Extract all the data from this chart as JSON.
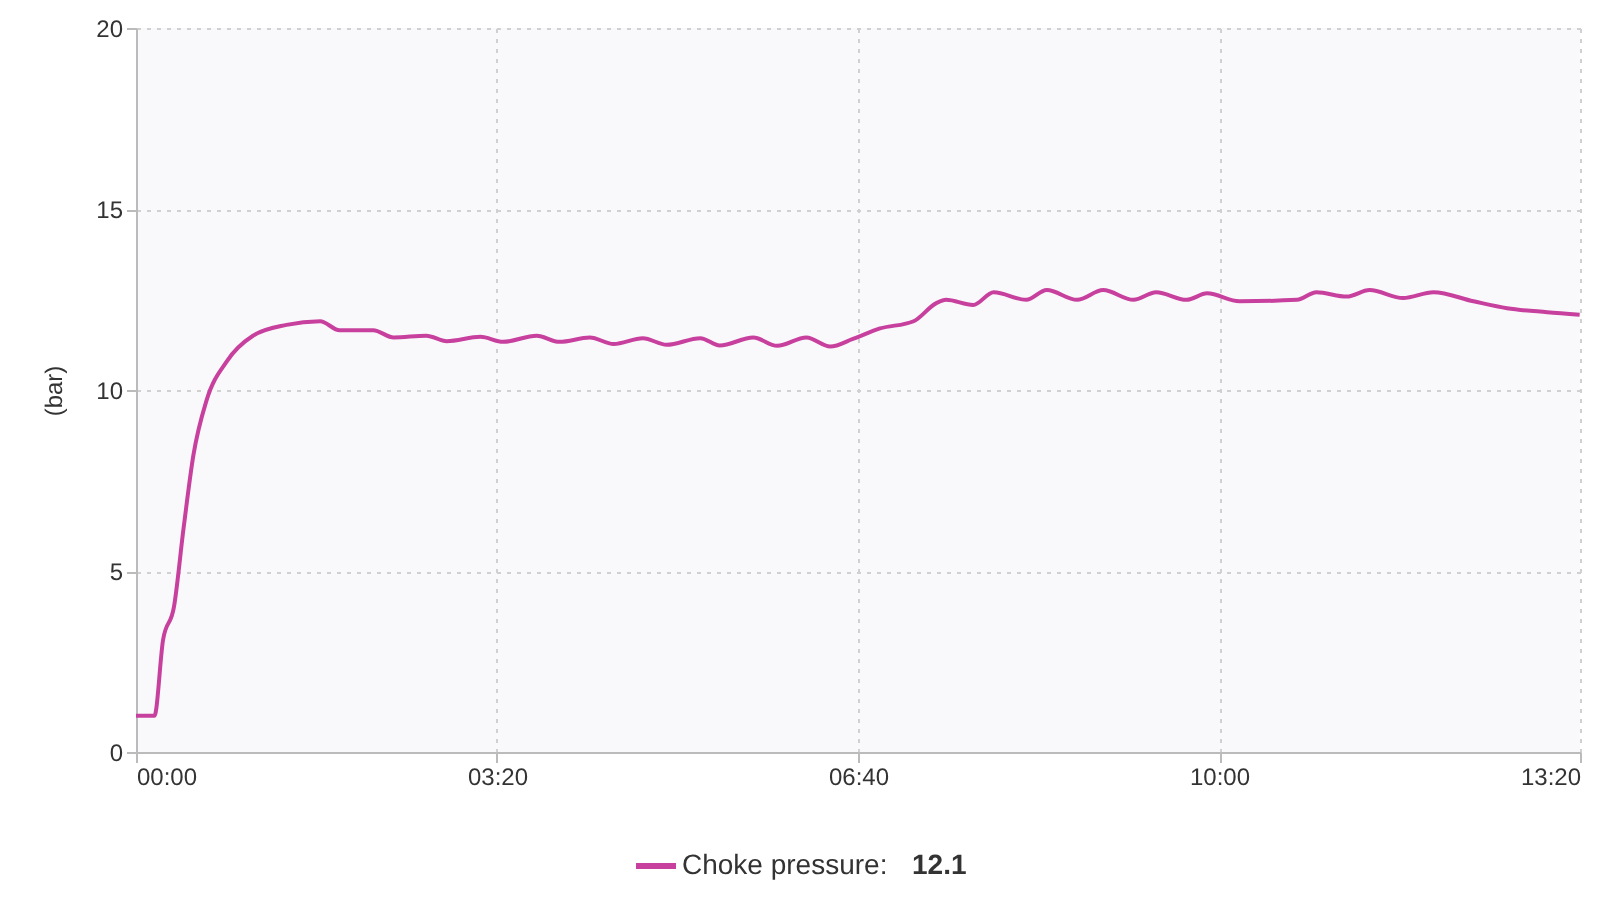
{
  "chart_data": {
    "type": "line",
    "ylabel": "(bar)",
    "xlim": [
      0,
      13.3333
    ],
    "xticks": [
      {
        "value": 0,
        "label": "00:00"
      },
      {
        "value": 3.3333,
        "label": "03:20"
      },
      {
        "value": 6.6667,
        "label": "06:40"
      },
      {
        "value": 10,
        "label": "10:00"
      },
      {
        "value": 13.3333,
        "label": "13:20"
      }
    ],
    "ylim": [
      0,
      20
    ],
    "yticks": [
      0,
      5,
      10,
      15,
      20
    ],
    "grid": true,
    "legend": "bottom",
    "marker": "none",
    "line_style": "solid",
    "annotations": [
      "12.1"
    ],
    "series": [
      {
        "name": "Choke pressure:",
        "color": "#c8409e",
        "x": [
          0,
          0.17,
          0.25,
          0.35,
          0.44,
          0.53,
          0.65,
          0.84,
          1.08,
          1.39,
          1.7,
          1.88,
          2.19,
          2.38,
          2.68,
          2.87,
          3.18,
          3.39,
          3.7,
          3.91,
          4.19,
          4.41,
          4.68,
          4.9,
          5.21,
          5.39,
          5.7,
          5.92,
          6.19,
          6.41,
          6.62,
          6.87,
          7.18,
          7.39,
          7.48,
          7.73,
          7.92,
          8.22,
          8.41,
          8.69,
          8.93,
          9.21,
          9.42,
          9.7,
          9.89,
          10.19,
          10.72,
          10.9,
          11.18,
          11.39,
          11.7,
          11.98,
          12.35,
          12.66,
          13.03,
          13.33
        ],
        "values": [
          1.0,
          1.0,
          3.1,
          4.0,
          6.2,
          8.2,
          9.7,
          10.8,
          11.5,
          11.8,
          11.9,
          11.65,
          11.65,
          11.45,
          11.5,
          11.35,
          11.47,
          11.33,
          11.5,
          11.33,
          11.45,
          11.27,
          11.43,
          11.25,
          11.43,
          11.23,
          11.45,
          11.22,
          11.45,
          11.2,
          11.41,
          11.7,
          11.9,
          12.4,
          12.49,
          12.35,
          12.7,
          12.49,
          12.76,
          12.49,
          12.76,
          12.49,
          12.7,
          12.49,
          12.67,
          12.45,
          12.49,
          12.7,
          12.58,
          12.76,
          12.54,
          12.7,
          12.45,
          12.26,
          12.15,
          12.08
        ]
      }
    ]
  }
}
